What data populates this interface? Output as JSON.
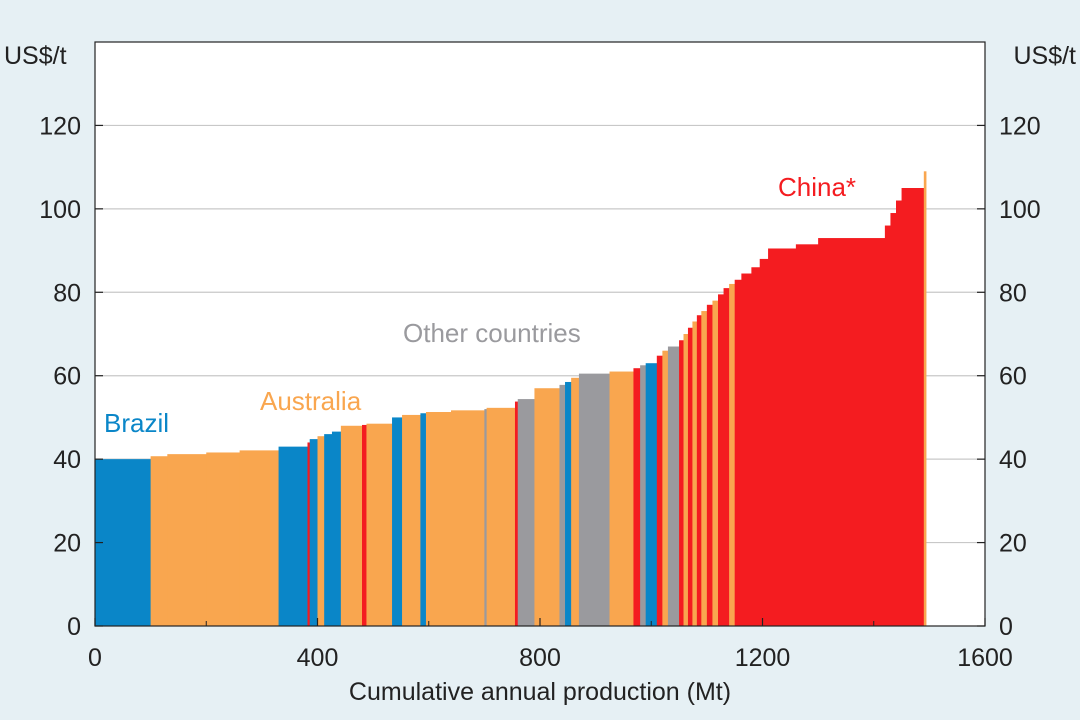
{
  "chart_data": {
    "type": "bar",
    "subtype": "cost-curve",
    "title": "",
    "xlabel": "Cumulative annual production (Mt)",
    "ylabel_left": "US$/t",
    "ylabel_right": "US$/t",
    "xlim": [
      0,
      1600
    ],
    "ylim": [
      0,
      140
    ],
    "xticks": [
      "0",
      "400",
      "800",
      "1200",
      "1600"
    ],
    "yticks": [
      "0",
      "20",
      "40",
      "60",
      "80",
      "100",
      "120"
    ],
    "grid": "horizontal",
    "colors": {
      "Brazil": "#0a86c8",
      "Australia": "#f9a64f",
      "Other countries": "#9a9a9e",
      "China": "#f41c20",
      "background": "#e6f0f4",
      "plot_bg": "#ffffff",
      "grid": "#c8c8c8"
    },
    "annotations": [
      {
        "text": "Brazil",
        "series": "Brazil"
      },
      {
        "text": "Australia",
        "series": "Australia"
      },
      {
        "text": "Other countries",
        "series": "Other countries"
      },
      {
        "text": "China*",
        "series": "China"
      }
    ],
    "segments": [
      {
        "x0": 0,
        "x1": 100,
        "y": 40,
        "country": "Brazil"
      },
      {
        "x0": 100,
        "x1": 130,
        "y": 40.7,
        "country": "Australia"
      },
      {
        "x0": 130,
        "x1": 200,
        "y": 41.2,
        "country": "Australia"
      },
      {
        "x0": 200,
        "x1": 260,
        "y": 41.6,
        "country": "Australia"
      },
      {
        "x0": 260,
        "x1": 330,
        "y": 42.1,
        "country": "Australia"
      },
      {
        "x0": 330,
        "x1": 382,
        "y": 43,
        "country": "Brazil"
      },
      {
        "x0": 382,
        "x1": 386,
        "y": 44,
        "country": "China"
      },
      {
        "x0": 386,
        "x1": 400,
        "y": 44.8,
        "country": "Brazil"
      },
      {
        "x0": 400,
        "x1": 412,
        "y": 45.5,
        "country": "Australia"
      },
      {
        "x0": 412,
        "x1": 426,
        "y": 46,
        "country": "Brazil"
      },
      {
        "x0": 426,
        "x1": 442,
        "y": 46.6,
        "country": "Brazil"
      },
      {
        "x0": 442,
        "x1": 480,
        "y": 48,
        "country": "Australia"
      },
      {
        "x0": 480,
        "x1": 488,
        "y": 48.2,
        "country": "China"
      },
      {
        "x0": 488,
        "x1": 534,
        "y": 48.5,
        "country": "Australia"
      },
      {
        "x0": 534,
        "x1": 552,
        "y": 50,
        "country": "Brazil"
      },
      {
        "x0": 552,
        "x1": 585,
        "y": 50.6,
        "country": "Australia"
      },
      {
        "x0": 585,
        "x1": 595,
        "y": 51,
        "country": "Brazil"
      },
      {
        "x0": 595,
        "x1": 640,
        "y": 51.3,
        "country": "Australia"
      },
      {
        "x0": 640,
        "x1": 700,
        "y": 51.7,
        "country": "Australia"
      },
      {
        "x0": 700,
        "x1": 704,
        "y": 52,
        "country": "Other countries"
      },
      {
        "x0": 704,
        "x1": 755,
        "y": 52.3,
        "country": "Australia"
      },
      {
        "x0": 755,
        "x1": 760,
        "y": 53.8,
        "country": "China"
      },
      {
        "x0": 760,
        "x1": 790,
        "y": 54.4,
        "country": "Other countries"
      },
      {
        "x0": 790,
        "x1": 835,
        "y": 57,
        "country": "Australia"
      },
      {
        "x0": 835,
        "x1": 845,
        "y": 57.8,
        "country": "Other countries"
      },
      {
        "x0": 845,
        "x1": 856,
        "y": 58.5,
        "country": "Brazil"
      },
      {
        "x0": 856,
        "x1": 870,
        "y": 59.5,
        "country": "Australia"
      },
      {
        "x0": 870,
        "x1": 925,
        "y": 60.5,
        "country": "Other countries"
      },
      {
        "x0": 925,
        "x1": 968,
        "y": 61,
        "country": "Australia"
      },
      {
        "x0": 968,
        "x1": 980,
        "y": 61.8,
        "country": "China"
      },
      {
        "x0": 980,
        "x1": 990,
        "y": 62.5,
        "country": "Other countries"
      },
      {
        "x0": 990,
        "x1": 1010,
        "y": 63,
        "country": "Brazil"
      },
      {
        "x0": 1010,
        "x1": 1020,
        "y": 64.8,
        "country": "China"
      },
      {
        "x0": 1020,
        "x1": 1030,
        "y": 66,
        "country": "Australia"
      },
      {
        "x0": 1030,
        "x1": 1050,
        "y": 67,
        "country": "Other countries"
      },
      {
        "x0": 1050,
        "x1": 1058,
        "y": 68.5,
        "country": "China"
      },
      {
        "x0": 1058,
        "x1": 1066,
        "y": 70,
        "country": "Australia"
      },
      {
        "x0": 1066,
        "x1": 1074,
        "y": 71.5,
        "country": "China"
      },
      {
        "x0": 1074,
        "x1": 1082,
        "y": 73,
        "country": "Australia"
      },
      {
        "x0": 1082,
        "x1": 1090,
        "y": 74.5,
        "country": "China"
      },
      {
        "x0": 1090,
        "x1": 1100,
        "y": 75.5,
        "country": "Australia"
      },
      {
        "x0": 1100,
        "x1": 1110,
        "y": 77,
        "country": "China"
      },
      {
        "x0": 1110,
        "x1": 1120,
        "y": 78,
        "country": "Australia"
      },
      {
        "x0": 1120,
        "x1": 1130,
        "y": 79.5,
        "country": "China"
      },
      {
        "x0": 1130,
        "x1": 1140,
        "y": 81,
        "country": "China"
      },
      {
        "x0": 1140,
        "x1": 1150,
        "y": 82,
        "country": "Australia"
      },
      {
        "x0": 1150,
        "x1": 1162,
        "y": 83,
        "country": "China"
      },
      {
        "x0": 1162,
        "x1": 1180,
        "y": 84.5,
        "country": "China"
      },
      {
        "x0": 1180,
        "x1": 1195,
        "y": 86,
        "country": "China"
      },
      {
        "x0": 1195,
        "x1": 1210,
        "y": 88,
        "country": "China"
      },
      {
        "x0": 1210,
        "x1": 1260,
        "y": 90.5,
        "country": "China"
      },
      {
        "x0": 1260,
        "x1": 1300,
        "y": 91.5,
        "country": "China"
      },
      {
        "x0": 1300,
        "x1": 1420,
        "y": 93,
        "country": "China"
      },
      {
        "x0": 1420,
        "x1": 1430,
        "y": 96,
        "country": "China"
      },
      {
        "x0": 1430,
        "x1": 1440,
        "y": 99,
        "country": "China"
      },
      {
        "x0": 1440,
        "x1": 1450,
        "y": 102,
        "country": "China"
      },
      {
        "x0": 1450,
        "x1": 1490,
        "y": 105,
        "country": "China"
      },
      {
        "x0": 1490,
        "x1": 1494,
        "y": 109,
        "country": "Australia"
      }
    ]
  }
}
